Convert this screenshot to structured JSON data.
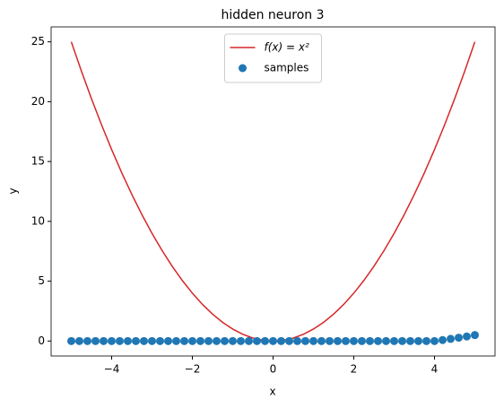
{
  "chart_data": {
    "type": "line",
    "title": "hidden neuron 3",
    "x_label": "x",
    "y_label": "y",
    "xlim": [
      -5.5,
      5.5
    ],
    "ylim": [
      -1.25,
      26.25
    ],
    "xticks": [
      {
        "value": -4,
        "label": "−4"
      },
      {
        "value": -2,
        "label": "−2"
      },
      0,
      2,
      4
    ],
    "yticks": [
      0,
      5,
      10,
      15,
      20,
      25
    ],
    "grid": false,
    "legend": "upper center",
    "series": [
      {
        "name": "f(x) = x²",
        "type": "line",
        "color": "#d62728",
        "x": [
          -5,
          -4.75,
          -4.5,
          -4.25,
          -4,
          -3.75,
          -3.5,
          -3.25,
          -3,
          -2.75,
          -2.5,
          -2.25,
          -2,
          -1.75,
          -1.5,
          -1.25,
          -1,
          -0.75,
          -0.5,
          -0.25,
          0,
          0.25,
          0.5,
          0.75,
          1,
          1.25,
          1.5,
          1.75,
          2,
          2.25,
          2.5,
          2.75,
          3,
          3.25,
          3.5,
          3.75,
          4,
          4.25,
          4.5,
          4.75,
          5
        ],
        "values": [
          25,
          22.5625,
          20.25,
          18.0625,
          16,
          14.0625,
          12.25,
          10.5625,
          9,
          7.5625,
          6.25,
          5.0625,
          4,
          3.0625,
          2.25,
          1.5625,
          1,
          0.5625,
          0.25,
          0.0625,
          0,
          0.0625,
          0.25,
          0.5625,
          1,
          1.5625,
          2.25,
          3.0625,
          4,
          5.0625,
          6.25,
          7.5625,
          9,
          10.5625,
          12.25,
          14.0625,
          16,
          18.0625,
          20.25,
          22.5625,
          25
        ]
      },
      {
        "name": "samples",
        "type": "scatter",
        "color": "#1f77b4",
        "x": [
          -5,
          -4.8,
          -4.6,
          -4.4,
          -4.2,
          -4,
          -3.8,
          -3.6,
          -3.4,
          -3.2,
          -3,
          -2.8,
          -2.6,
          -2.4,
          -2.2,
          -2,
          -1.8,
          -1.6,
          -1.4,
          -1.2,
          -1,
          -0.8,
          -0.6,
          -0.4,
          -0.2,
          0,
          0.2,
          0.4,
          0.6,
          0.8,
          1,
          1.2,
          1.4,
          1.6,
          1.8,
          2,
          2.2,
          2.4,
          2.6,
          2.8,
          3,
          3.2,
          3.4,
          3.6,
          3.8,
          4,
          4.2,
          4.4,
          4.6,
          4.8,
          5
        ],
        "values": [
          0,
          0,
          0,
          0,
          0,
          0,
          0,
          0,
          0,
          0,
          0,
          0,
          0,
          0,
          0,
          0,
          0,
          0,
          0,
          0,
          0,
          0,
          0,
          0,
          0,
          0,
          0,
          0,
          0,
          0,
          0,
          0,
          0,
          0,
          0,
          0,
          0,
          0,
          0,
          0,
          0,
          0,
          0,
          0,
          0,
          0,
          0.08,
          0.18,
          0.28,
          0.38,
          0.5
        ]
      }
    ]
  }
}
